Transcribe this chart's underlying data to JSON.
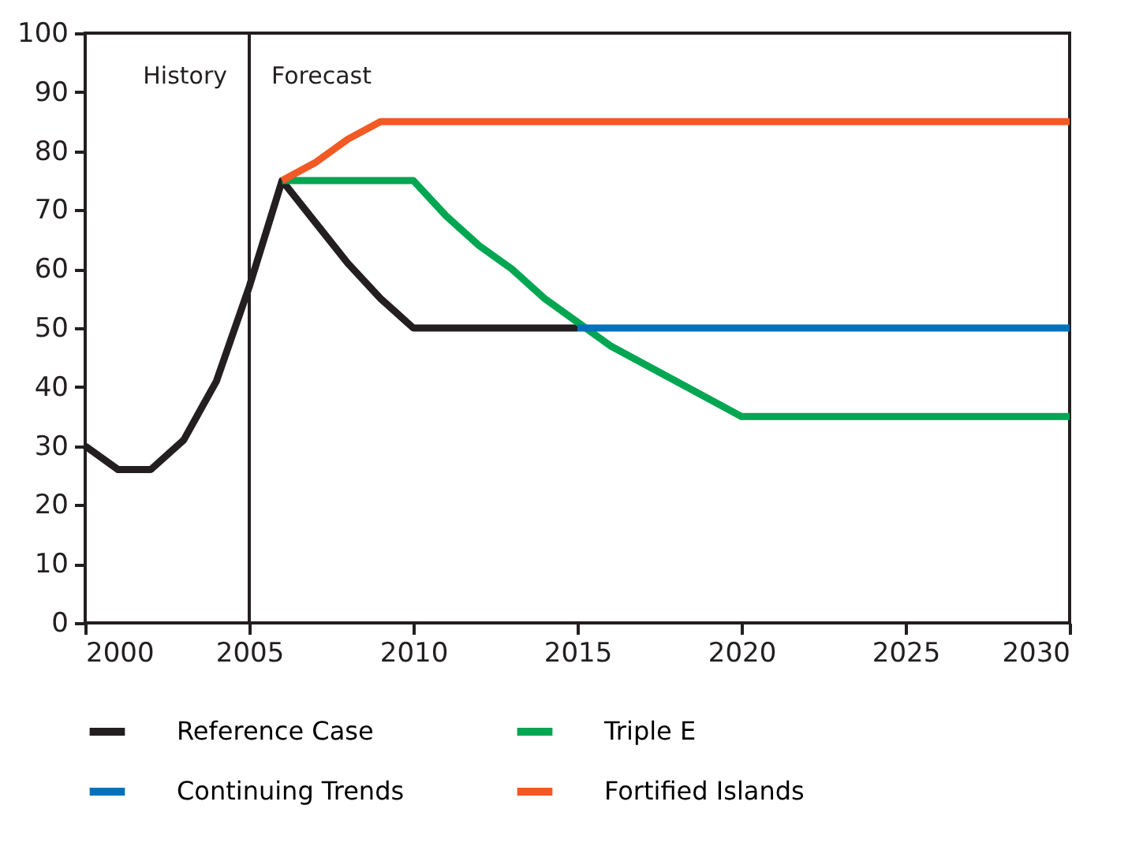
{
  "chart_data": {
    "type": "line",
    "xlim": [
      2000,
      2030
    ],
    "xticks": [
      2000,
      2005,
      2010,
      2015,
      2020,
      2025,
      2030
    ],
    "ylim": [
      0,
      100
    ],
    "yticks": [
      0,
      10,
      20,
      30,
      40,
      50,
      60,
      70,
      80,
      90,
      100
    ],
    "grid": false,
    "legend": "bottom",
    "line_style": "solid",
    "marker": "none",
    "series": [
      {
        "name": "Reference Case",
        "color": "#231f20",
        "x": [
          2000,
          2001,
          2002,
          2003,
          2004,
          2005,
          2006,
          2007,
          2008,
          2009,
          2010,
          2015
        ],
        "values": [
          30,
          26,
          26,
          31,
          41,
          57,
          75,
          68,
          61,
          55,
          50,
          50
        ]
      },
      {
        "name": "Triple E",
        "color": "#00a651",
        "x": [
          2006,
          2010,
          2011,
          2012,
          2013,
          2014,
          2015,
          2016,
          2020,
          2030
        ],
        "values": [
          75,
          75,
          69,
          64,
          60,
          55,
          51,
          47,
          35,
          35
        ]
      },
      {
        "name": "Continuing Trends",
        "color": "#0072bc",
        "x": [
          2015,
          2030
        ],
        "values": [
          50,
          50
        ]
      },
      {
        "name": "Fortified Islands",
        "color": "#f15a24",
        "x": [
          2006,
          2007,
          2008,
          2009,
          2030
        ],
        "values": [
          75,
          78,
          82,
          85,
          85
        ]
      }
    ],
    "ref_lines": [
      {
        "axis": "x",
        "value": 2005,
        "color": "#231f20",
        "line_style": "solid"
      }
    ],
    "annotations": [
      "History",
      "Forecast"
    ]
  }
}
